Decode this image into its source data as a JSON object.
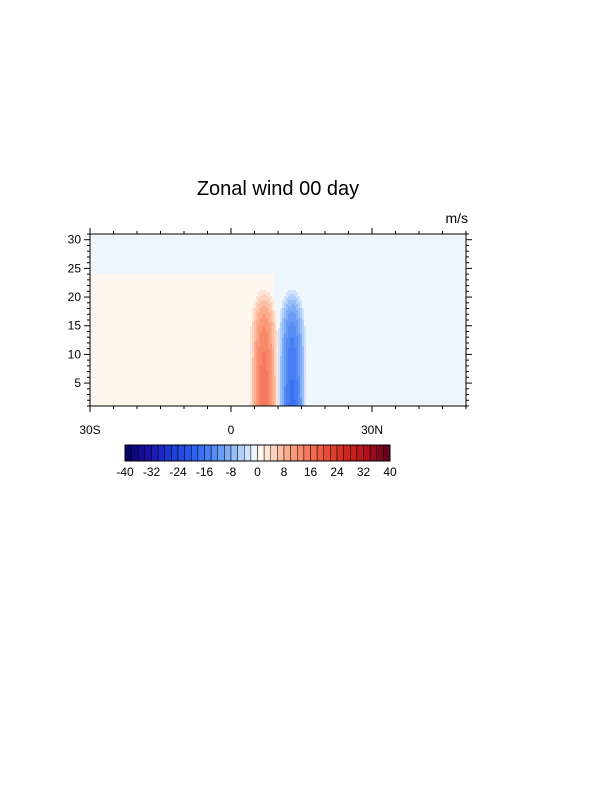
{
  "chart_data": {
    "type": "heatmap",
    "title": "Zonal wind 00 day",
    "units": "m/s",
    "x": {
      "range": [
        -30,
        50
      ],
      "ticks": [
        -30,
        0,
        30
      ],
      "tick_labels": [
        "30S",
        "0",
        "30N"
      ]
    },
    "y": {
      "range": [
        1,
        31
      ],
      "ticks": [
        5,
        10,
        15,
        20,
        25,
        30
      ],
      "tick_labels": [
        "5",
        "10",
        "15",
        "20",
        "25",
        "30"
      ]
    },
    "features": [
      {
        "name": "westerly jet",
        "lat_center": 7,
        "lat_halfwidth": 3.2,
        "top_level": 22,
        "peak": 16,
        "sign": 1
      },
      {
        "name": "easterly jet",
        "lat_center": 13,
        "lat_halfwidth": 3.2,
        "top_level": 22,
        "peak": 17,
        "sign": -1
      }
    ],
    "background": [
      {
        "region": "lat < 9, level <= 24",
        "value": 1
      },
      {
        "region": "elsewhere",
        "value": -1
      }
    ],
    "colorbar": {
      "min": -40,
      "max": 40,
      "step": 2,
      "labels": [
        "-40",
        "-32",
        "-24",
        "-16",
        "-8",
        "0",
        "8",
        "16",
        "24",
        "32",
        "40"
      ],
      "anchors": [
        {
          "value": -40,
          "color": "#05035e"
        },
        {
          "value": -33,
          "color": "#1a0fa8"
        },
        {
          "value": -26,
          "color": "#1e3ad8"
        },
        {
          "value": -19,
          "color": "#2b60f0"
        },
        {
          "value": -12,
          "color": "#5f93f6"
        },
        {
          "value": -6,
          "color": "#a3c6f8"
        },
        {
          "value": -1,
          "color": "#eef7fe"
        },
        {
          "value": 1,
          "color": "#fff6ee"
        },
        {
          "value": 6,
          "color": "#fcc8ae"
        },
        {
          "value": 12,
          "color": "#fa916f"
        },
        {
          "value": 19,
          "color": "#ee5a42"
        },
        {
          "value": 26,
          "color": "#d42a1e"
        },
        {
          "value": 33,
          "color": "#b0101e"
        },
        {
          "value": 40,
          "color": "#5a0018"
        }
      ]
    }
  }
}
